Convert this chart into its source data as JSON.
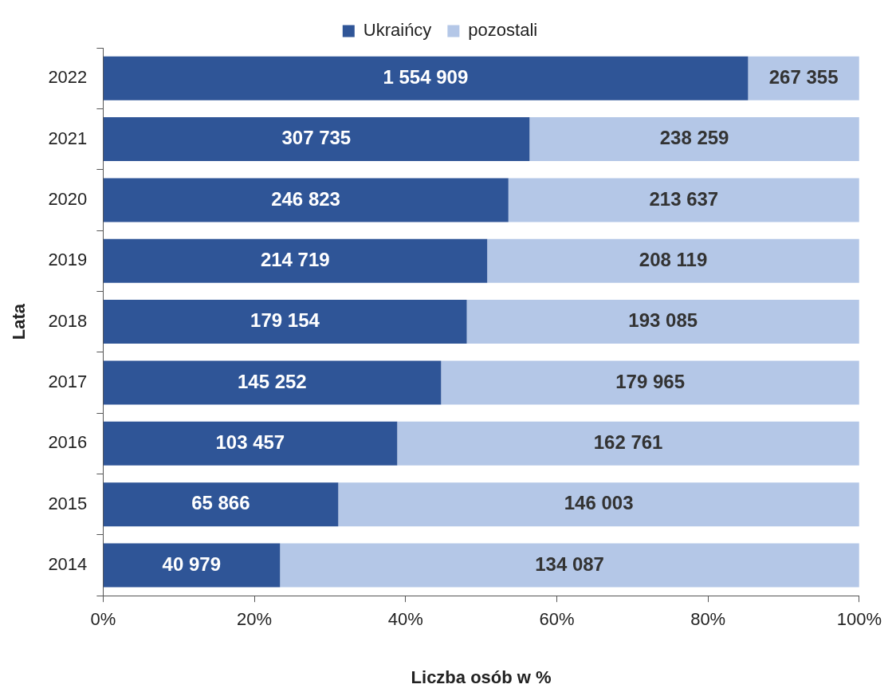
{
  "chart_data": {
    "type": "bar",
    "orientation": "horizontal",
    "stacked": true,
    "xlabel": "Liczba osób w %",
    "ylabel": "Lata",
    "categories": [
      "2022",
      "2021",
      "2020",
      "2019",
      "2018",
      "2017",
      "2016",
      "2015",
      "2014"
    ],
    "series": [
      {
        "name": "Ukraińcy",
        "color": "#2f5597",
        "values": [
          85.3,
          56.4,
          53.6,
          50.8,
          48.1,
          44.7,
          38.9,
          31.1,
          23.4
        ]
      },
      {
        "name": "pozostali",
        "color": "#b4c7e7",
        "values": [
          14.7,
          43.6,
          46.4,
          49.2,
          51.9,
          55.3,
          61.1,
          68.9,
          76.6
        ]
      }
    ],
    "annotations": [
      {
        "text": "1 554 909",
        "x": 42.65,
        "y": "2022"
      },
      {
        "text": "267 355",
        "x": 92.65,
        "y": "2022"
      },
      {
        "text": "307 735",
        "x": 28.2,
        "y": "2021"
      },
      {
        "text": "238 259",
        "x": 78.2,
        "y": "2021"
      },
      {
        "text": "246 823",
        "x": 26.8,
        "y": "2020"
      },
      {
        "text": "213 637",
        "x": 76.8,
        "y": "2020"
      },
      {
        "text": "214 719",
        "x": 25.4,
        "y": "2019"
      },
      {
        "text": "208 119",
        "x": 75.4,
        "y": "2019"
      },
      {
        "text": "179 154",
        "x": 24.05,
        "y": "2018"
      },
      {
        "text": "193 085",
        "x": 74.05,
        "y": "2018"
      },
      {
        "text": "145 252",
        "x": 22.35,
        "y": "2017"
      },
      {
        "text": "179 965",
        "x": 72.35,
        "y": "2017"
      },
      {
        "text": "103 457",
        "x": 19.45,
        "y": "2016"
      },
      {
        "text": "162 761",
        "x": 69.45,
        "y": "2016"
      },
      {
        "text": "65 866",
        "x": 15.55,
        "y": "2015"
      },
      {
        "text": "146 003",
        "x": 65.55,
        "y": "2015"
      },
      {
        "text": "40 979",
        "x": 11.7,
        "y": "2014"
      },
      {
        "text": "134 087",
        "x": 61.7,
        "y": "2014"
      }
    ],
    "xlim": [
      0,
      100
    ],
    "xticks": [
      {
        "value": 0,
        "label": "0%"
      },
      {
        "value": 20,
        "label": "20%"
      },
      {
        "value": 40,
        "label": "40%"
      },
      {
        "value": 60,
        "label": "60%"
      },
      {
        "value": 80,
        "label": "80%"
      },
      {
        "value": 100,
        "label": "100%"
      }
    ],
    "grid": false,
    "legend": "top"
  }
}
